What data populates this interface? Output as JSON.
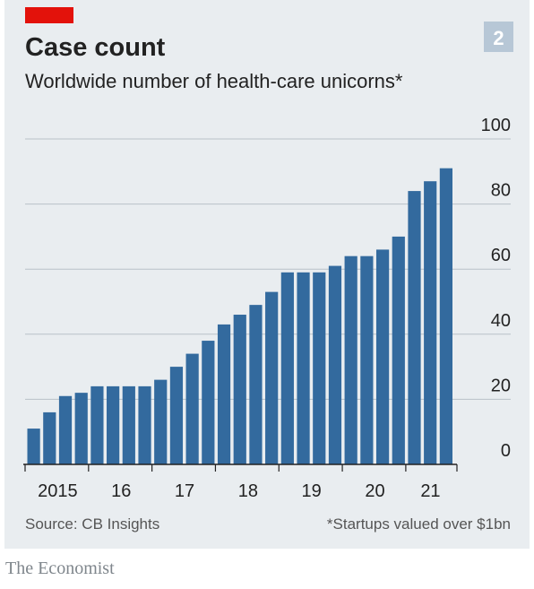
{
  "chart_data": {
    "type": "bar",
    "title": "Case count",
    "subtitle": "Worldwide number of health-care unicorns*",
    "badge": "2",
    "categories": [
      "2015",
      null,
      null,
      null,
      "16",
      null,
      null,
      null,
      "17",
      null,
      null,
      null,
      "18",
      null,
      null,
      null,
      "19",
      null,
      null,
      null,
      "20",
      null,
      null,
      null,
      "21",
      null,
      null
    ],
    "values": [
      11,
      16,
      21,
      22,
      24,
      24,
      24,
      24,
      26,
      30,
      34,
      38,
      43,
      46,
      49,
      53,
      59,
      59,
      59,
      61,
      64,
      64,
      66,
      70,
      84,
      87,
      91
    ],
    "color": "#336a9e",
    "ylim": [
      0,
      100
    ],
    "yticks": [
      0,
      20,
      40,
      60,
      80,
      100
    ],
    "grid": true,
    "source": "Source: CB Insights",
    "note": "*Startups valued over $1bn",
    "brand": "The Economist"
  }
}
